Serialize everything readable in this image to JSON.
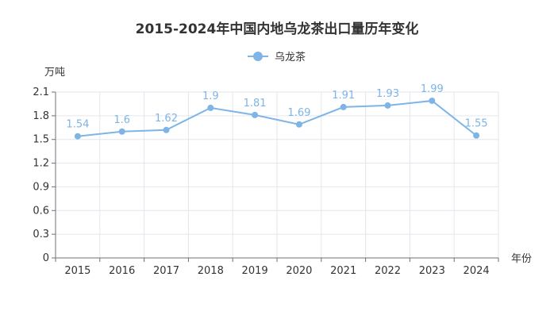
{
  "chart_data": {
    "type": "line",
    "title": "2015-2024年中国内地乌龙茶出口量历年变化",
    "xlabel": "年份",
    "ylabel": "万吨",
    "categories": [
      "2015",
      "2016",
      "2017",
      "2018",
      "2019",
      "2020",
      "2021",
      "2022",
      "2023",
      "2024"
    ],
    "series": [
      {
        "name": "乌龙茶",
        "values": [
          1.54,
          1.6,
          1.62,
          1.9,
          1.81,
          1.69,
          1.91,
          1.93,
          1.99,
          1.55
        ]
      }
    ],
    "ylim": [
      0,
      2.1
    ],
    "yticks": [
      "0",
      "0.3",
      "0.6",
      "0.9",
      "1.2",
      "1.5",
      "1.8",
      "2.1"
    ],
    "grid": true,
    "legend_position": "top-center",
    "colors": {
      "series": "#7eb4e6",
      "grid": "#e3e6ee",
      "axis": "#6e7079",
      "text": "#333333"
    }
  }
}
